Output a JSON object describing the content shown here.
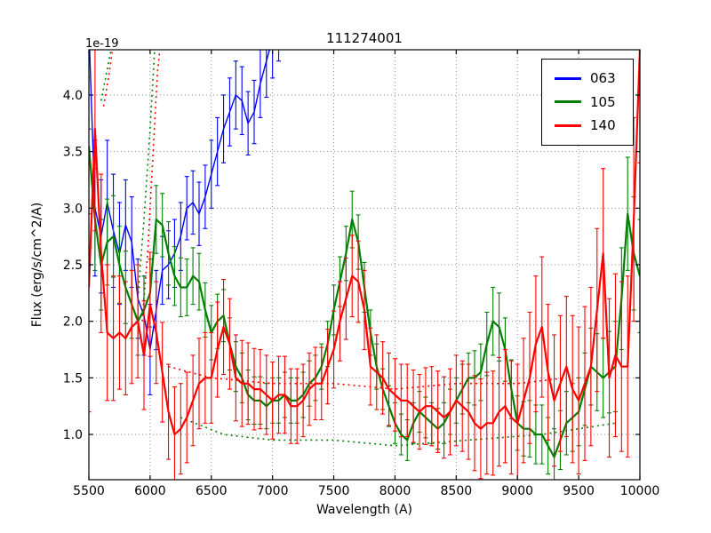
{
  "window": {
    "title": "111274001"
  },
  "chart_data": {
    "type": "line",
    "title": "111274001",
    "xlabel": "Wavelength (A)",
    "ylabel": "Flux (erg/s/cm^2/A)",
    "y_offset_text": "1e-19",
    "xlim": [
      5500,
      10000
    ],
    "ylim": [
      0.6,
      4.4
    ],
    "xticks": [
      5500,
      6000,
      6500,
      7000,
      7500,
      8000,
      8500,
      9000,
      9500,
      10000
    ],
    "yticks": [
      1.0,
      1.5,
      2.0,
      2.5,
      3.0,
      3.5,
      4.0
    ],
    "grid": true,
    "legend": {
      "position": "upper right",
      "entries": [
        {
          "label": "063",
          "color": "#0000ff"
        },
        {
          "label": "105",
          "color": "#008000"
        },
        {
          "label": "140",
          "color": "#ff0000"
        }
      ]
    },
    "series": [
      {
        "name": "063",
        "color": "#0000ff",
        "lw": 1.4,
        "x0": 5500,
        "dx": 50,
        "y": [
          4.6,
          3.0,
          2.75,
          3.05,
          2.8,
          2.6,
          2.85,
          2.7,
          2.2,
          2.05,
          1.75,
          2.1,
          2.45,
          2.5,
          2.6,
          2.75,
          3.0,
          3.05,
          2.95,
          3.1,
          3.3,
          3.5,
          3.7,
          3.85,
          4.0,
          3.95,
          3.75,
          3.85,
          4.1,
          4.3,
          4.5,
          4.7
        ],
        "yerr": [
          0.9,
          0.6,
          0.5,
          0.55,
          0.5,
          0.45,
          0.4,
          0.4,
          0.35,
          0.35,
          0.4,
          0.35,
          0.3,
          0.3,
          0.3,
          0.3,
          0.28,
          0.28,
          0.28,
          0.28,
          0.3,
          0.3,
          0.3,
          0.3,
          0.3,
          0.3,
          0.28,
          0.28,
          0.3,
          0.32,
          0.35,
          0.4
        ]
      },
      {
        "name": "105",
        "color": "#008000",
        "lw": 2.2,
        "x0": 5500,
        "dx": 50,
        "y": [
          3.55,
          2.9,
          2.5,
          2.7,
          2.75,
          2.5,
          2.3,
          2.15,
          2.0,
          2.1,
          2.25,
          2.9,
          2.85,
          2.6,
          2.4,
          2.3,
          2.3,
          2.4,
          2.35,
          2.1,
          1.9,
          2.0,
          2.05,
          1.8,
          1.6,
          1.5,
          1.35,
          1.3,
          1.3,
          1.25,
          1.3,
          1.3,
          1.35,
          1.3,
          1.3,
          1.35,
          1.45,
          1.5,
          1.6,
          1.8,
          2.1,
          2.35,
          2.6,
          2.9,
          2.7,
          2.3,
          1.9,
          1.6,
          1.4,
          1.25,
          1.1,
          1.0,
          0.95,
          1.1,
          1.2,
          1.15,
          1.1,
          1.05,
          1.1,
          1.2,
          1.3,
          1.4,
          1.5,
          1.5,
          1.55,
          1.8,
          2.0,
          1.95,
          1.75,
          1.4,
          1.1,
          1.05,
          1.05,
          1.0,
          1.0,
          0.9,
          0.8,
          0.95,
          1.1,
          1.15,
          1.2,
          1.4,
          1.6,
          1.55,
          1.5,
          1.55,
          1.6,
          2.2,
          2.95,
          2.6,
          2.4
        ],
        "yerr": [
          0.6,
          0.45,
          0.4,
          0.38,
          0.36,
          0.34,
          0.32,
          0.3,
          0.3,
          0.3,
          0.3,
          0.3,
          0.28,
          0.28,
          0.26,
          0.26,
          0.25,
          0.25,
          0.25,
          0.24,
          0.24,
          0.24,
          0.23,
          0.23,
          0.22,
          0.22,
          0.22,
          0.21,
          0.21,
          0.2,
          0.2,
          0.2,
          0.2,
          0.2,
          0.2,
          0.2,
          0.2,
          0.2,
          0.2,
          0.2,
          0.22,
          0.22,
          0.24,
          0.25,
          0.24,
          0.22,
          0.2,
          0.2,
          0.18,
          0.18,
          0.18,
          0.18,
          0.18,
          0.18,
          0.18,
          0.18,
          0.18,
          0.18,
          0.18,
          0.2,
          0.2,
          0.22,
          0.22,
          0.24,
          0.25,
          0.28,
          0.3,
          0.3,
          0.28,
          0.26,
          0.24,
          0.24,
          0.25,
          0.26,
          0.26,
          0.25,
          0.25,
          0.26,
          0.28,
          0.3,
          0.3,
          0.32,
          0.34,
          0.34,
          0.35,
          0.36,
          0.4,
          0.45,
          0.5,
          0.5,
          0.5
        ]
      },
      {
        "name": "140",
        "color": "#ff0000",
        "lw": 2.2,
        "x0": 5500,
        "dx": 50,
        "y": [
          2.3,
          3.7,
          2.6,
          1.9,
          1.85,
          1.9,
          1.85,
          1.95,
          2.0,
          1.7,
          2.15,
          1.9,
          1.55,
          1.2,
          1.0,
          1.05,
          1.15,
          1.3,
          1.45,
          1.5,
          1.5,
          1.75,
          1.95,
          1.8,
          1.5,
          1.45,
          1.45,
          1.4,
          1.4,
          1.35,
          1.3,
          1.35,
          1.35,
          1.25,
          1.25,
          1.3,
          1.4,
          1.45,
          1.45,
          1.6,
          1.75,
          2.0,
          2.2,
          2.4,
          2.35,
          2.1,
          1.6,
          1.55,
          1.5,
          1.4,
          1.35,
          1.3,
          1.3,
          1.25,
          1.2,
          1.25,
          1.25,
          1.2,
          1.15,
          1.2,
          1.3,
          1.25,
          1.2,
          1.1,
          1.05,
          1.1,
          1.1,
          1.2,
          1.25,
          1.15,
          1.1,
          1.3,
          1.5,
          1.8,
          1.95,
          1.55,
          1.3,
          1.45,
          1.6,
          1.4,
          1.3,
          1.45,
          1.6,
          2.1,
          2.6,
          1.5,
          1.7,
          1.6,
          1.6,
          2.9,
          4.4
        ],
        "yerr": [
          1.1,
          0.9,
          0.7,
          0.6,
          0.55,
          0.5,
          0.5,
          0.5,
          0.5,
          0.48,
          0.46,
          0.45,
          0.44,
          0.42,
          0.42,
          0.4,
          0.4,
          0.4,
          0.4,
          0.4,
          0.4,
          0.42,
          0.42,
          0.4,
          0.38,
          0.38,
          0.36,
          0.36,
          0.35,
          0.35,
          0.34,
          0.34,
          0.34,
          0.33,
          0.33,
          0.32,
          0.32,
          0.32,
          0.32,
          0.33,
          0.34,
          0.35,
          0.36,
          0.36,
          0.36,
          0.35,
          0.34,
          0.33,
          0.32,
          0.32,
          0.32,
          0.32,
          0.32,
          0.32,
          0.33,
          0.34,
          0.35,
          0.36,
          0.36,
          0.38,
          0.4,
          0.4,
          0.42,
          0.42,
          0.44,
          0.45,
          0.46,
          0.48,
          0.5,
          0.5,
          0.52,
          0.55,
          0.58,
          0.6,
          0.62,
          0.6,
          0.58,
          0.6,
          0.62,
          0.65,
          0.65,
          0.68,
          0.7,
          0.72,
          0.75,
          0.7,
          0.72,
          0.75,
          0.8,
          0.9,
          1.0
        ]
      }
    ],
    "dotted_series": [
      {
        "color": "#ff0000",
        "points": [
          [
            5935,
            2.0
          ],
          [
            5980,
            2.6
          ],
          [
            6020,
            3.4
          ],
          [
            6060,
            4.2
          ],
          [
            6085,
            4.45
          ]
        ]
      },
      {
        "color": "#008000",
        "points": [
          [
            5900,
            2.2
          ],
          [
            5950,
            2.9
          ],
          [
            6000,
            3.7
          ],
          [
            6040,
            4.45
          ]
        ]
      },
      {
        "color": "#ff0000",
        "points": [
          [
            5620,
            3.9
          ],
          [
            5660,
            4.15
          ],
          [
            5700,
            4.45
          ]
        ]
      },
      {
        "color": "#008000",
        "points": [
          [
            5600,
            3.95
          ],
          [
            5645,
            4.2
          ],
          [
            5690,
            4.45
          ]
        ]
      },
      {
        "color": "#ff0000",
        "points": [
          [
            6150,
            1.6
          ],
          [
            6500,
            1.5
          ],
          [
            7000,
            1.45
          ],
          [
            7500,
            1.45
          ],
          [
            8000,
            1.4
          ],
          [
            8500,
            1.45
          ],
          [
            9000,
            1.45
          ],
          [
            9400,
            1.5
          ]
        ]
      },
      {
        "color": "#008000",
        "points": [
          [
            6250,
            1.15
          ],
          [
            6600,
            1.0
          ],
          [
            7000,
            0.95
          ],
          [
            7500,
            0.95
          ],
          [
            8000,
            0.9
          ],
          [
            8600,
            0.95
          ],
          [
            9200,
            1.0
          ],
          [
            9800,
            1.1
          ]
        ]
      }
    ]
  }
}
